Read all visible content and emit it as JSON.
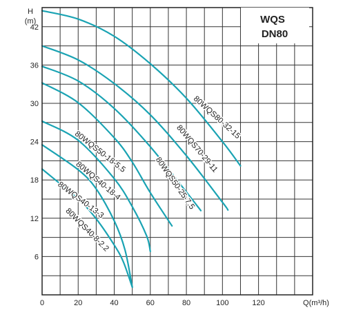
{
  "chart_data": {
    "type": "line",
    "title_line1": "WQS",
    "title_line2": "DN80",
    "ylabel_line1": "H",
    "ylabel_line2": "(m)",
    "xlabel": "Q(m³/h)",
    "xlim": [
      0,
      150
    ],
    "ylim": [
      0,
      45
    ],
    "xticks": [
      0,
      20,
      40,
      60,
      80,
      100,
      120
    ],
    "yticks": [
      6,
      12,
      18,
      24,
      30,
      36,
      42
    ],
    "grid": true,
    "x_grid_step": 10,
    "y_grid_step": 3,
    "series": [
      {
        "name": "80WQS80-32-15",
        "points": [
          [
            0,
            44.5
          ],
          [
            20,
            43.2
          ],
          [
            40,
            40.5
          ],
          [
            60,
            36.2
          ],
          [
            80,
            30.8
          ],
          [
            100,
            24.0
          ],
          [
            110,
            20.2
          ]
        ]
      },
      {
        "name": "80WQS70-29-11",
        "points": [
          [
            0,
            39.0
          ],
          [
            20,
            36.8
          ],
          [
            40,
            33.1
          ],
          [
            60,
            28.2
          ],
          [
            80,
            21.8
          ],
          [
            100,
            14.5
          ],
          [
            103,
            13.3
          ]
        ]
      },
      {
        "name": "80WQS50-25-7.5",
        "points": [
          [
            0,
            35.8
          ],
          [
            20,
            33.5
          ],
          [
            40,
            29.2
          ],
          [
            60,
            23.2
          ],
          [
            80,
            16.1
          ],
          [
            88,
            13.2
          ]
        ]
      },
      {
        "name": "80WQS50-18-5.5",
        "points": [
          [
            0,
            33.2
          ],
          [
            20,
            30.1
          ],
          [
            40,
            24.6
          ],
          [
            50,
            20.8
          ],
          [
            60,
            16.0
          ],
          [
            72,
            10.8
          ]
        ]
      },
      {
        "name": "80WQS40-18-4",
        "points": [
          [
            0,
            27.2
          ],
          [
            20,
            24.2
          ],
          [
            40,
            18.2
          ],
          [
            50,
            13.8
          ],
          [
            58,
            9.2
          ],
          [
            60,
            6.8
          ]
        ]
      },
      {
        "name": "80WQS40-13-3",
        "points": [
          [
            0,
            23.5
          ],
          [
            20,
            19.6
          ],
          [
            30,
            16.6
          ],
          [
            40,
            11.6
          ],
          [
            46,
            7.0
          ],
          [
            50,
            1.2
          ]
        ]
      },
      {
        "name": "80WQS40-8-2.2",
        "points": [
          [
            0,
            19.7
          ],
          [
            20,
            15.0
          ],
          [
            30,
            11.9
          ],
          [
            40,
            7.8
          ],
          [
            45,
            5.2
          ],
          [
            50,
            1.2
          ]
        ]
      }
    ],
    "line_color": "#1aa3b3",
    "annotations": [
      {
        "text": "80WQS80-32-15",
        "series": 0
      },
      {
        "text": "80WQS70-29-11",
        "series": 1
      },
      {
        "text": "80WQS50-25-7.5",
        "series": 2
      },
      {
        "text": "80WQS50-18-5.5",
        "series": 3
      },
      {
        "text": "80WQS40-18-4",
        "series": 4
      },
      {
        "text": "80WQS40-13-3",
        "series": 5
      },
      {
        "text": "80WQS40-8-2.2",
        "series": 6
      }
    ]
  }
}
